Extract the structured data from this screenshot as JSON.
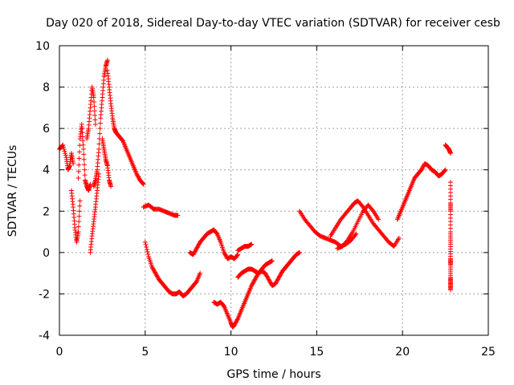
{
  "chart_data": {
    "type": "scatter",
    "title": "Day 020 of 2018, Sidereal Day-to-day VTEC variation (SDTVAR) for receiver cesb",
    "xlabel": "GPS time / hours",
    "ylabel": "SDTVAR / TECUs",
    "xlim": [
      0,
      25
    ],
    "ylim": [
      -4,
      10
    ],
    "xticks": [
      "0",
      "5",
      "10",
      "15",
      "20",
      "25"
    ],
    "yticks": [
      "-4",
      "-2",
      "0",
      "2",
      "4",
      "6",
      "8",
      "10"
    ],
    "grid": true,
    "marker": "+",
    "color": "#ff0000",
    "segments": [
      {
        "x": [
          0.0,
          0.2,
          0.4,
          0.5,
          0.6,
          0.7,
          0.8
        ],
        "y": [
          5.0,
          5.2,
          4.6,
          4.0,
          4.2,
          4.8,
          4.3
        ]
      },
      {
        "x": [
          0.7,
          0.8,
          0.9,
          1.0,
          1.1,
          1.2
        ],
        "y": [
          3.0,
          2.2,
          1.2,
          0.5,
          1.0,
          2.5
        ]
      },
      {
        "x": [
          1.1,
          1.2,
          1.3,
          1.4,
          1.5,
          1.6,
          1.7,
          1.8
        ],
        "y": [
          3.6,
          5.5,
          6.2,
          5.0,
          3.5,
          3.2,
          3.0,
          3.3
        ]
      },
      {
        "x": [
          1.6,
          1.7,
          1.8,
          1.9,
          2.0,
          2.1
        ],
        "y": [
          5.5,
          6.0,
          7.0,
          8.0,
          7.5,
          6.2
        ]
      },
      {
        "x": [
          1.8,
          1.9,
          2.0,
          2.1,
          2.2,
          2.3
        ],
        "y": [
          0.0,
          0.8,
          1.5,
          2.2,
          3.0,
          3.8
        ]
      },
      {
        "x": [
          2.0,
          2.1,
          2.2,
          2.3,
          2.4,
          2.5,
          2.6,
          2.7,
          2.8
        ],
        "y": [
          3.2,
          3.5,
          4.0,
          5.0,
          6.5,
          7.5,
          8.5,
          9.0,
          9.3
        ]
      },
      {
        "x": [
          2.8,
          2.9,
          3.0,
          3.1,
          3.2,
          3.3
        ],
        "y": [
          8.8,
          8.0,
          7.2,
          6.5,
          6.0,
          5.8
        ]
      },
      {
        "x": [
          2.5,
          2.6,
          2.7,
          2.8,
          2.9,
          3.0
        ],
        "y": [
          5.5,
          5.0,
          4.5,
          4.2,
          3.5,
          3.2
        ]
      },
      {
        "x": [
          3.3,
          3.5,
          3.7,
          3.9,
          4.1,
          4.3,
          4.5,
          4.7,
          4.9
        ],
        "y": [
          5.8,
          5.6,
          5.4,
          5.0,
          4.6,
          4.2,
          3.8,
          3.5,
          3.3
        ]
      },
      {
        "x": [
          4.9,
          5.2,
          5.5,
          5.8,
          6.1,
          6.4,
          6.7,
          6.9
        ],
        "y": [
          2.2,
          2.3,
          2.1,
          2.1,
          2.0,
          1.9,
          1.8,
          1.8
        ]
      },
      {
        "x": [
          5.0,
          5.2,
          5.4,
          5.6,
          5.8,
          6.0,
          6.2,
          6.4,
          6.6,
          6.8,
          7.0,
          7.2,
          7.4,
          7.6,
          7.8,
          8.0,
          8.2
        ],
        "y": [
          0.5,
          -0.2,
          -0.7,
          -1.0,
          -1.3,
          -1.5,
          -1.7,
          -1.9,
          -2.0,
          -2.0,
          -1.9,
          -2.1,
          -2.0,
          -1.8,
          -1.6,
          -1.4,
          -1.0
        ]
      },
      {
        "x": [
          7.6,
          7.8,
          8.0,
          8.2,
          8.4,
          8.6,
          8.8,
          9.0,
          9.2,
          9.4,
          9.6,
          9.8,
          10.0,
          10.2,
          10.4
        ],
        "y": [
          0.0,
          -0.1,
          0.2,
          0.5,
          0.7,
          0.9,
          1.0,
          1.1,
          0.9,
          0.5,
          0.0,
          -0.3,
          -0.2,
          -0.3,
          -0.1
        ]
      },
      {
        "x": [
          9.0,
          9.2,
          9.4,
          9.6,
          9.8,
          10.0,
          10.1,
          10.2,
          10.4,
          10.6,
          10.8,
          11.0,
          11.2,
          11.4,
          11.6,
          11.8,
          12.0,
          12.2,
          12.4
        ],
        "y": [
          -2.4,
          -2.5,
          -2.4,
          -2.6,
          -3.0,
          -3.4,
          -3.6,
          -3.5,
          -3.2,
          -2.8,
          -2.4,
          -2.0,
          -1.6,
          -1.3,
          -1.0,
          -0.8,
          -0.6,
          -0.5,
          -0.4
        ]
      },
      {
        "x": [
          10.4,
          10.6,
          10.8,
          11.0,
          11.2
        ],
        "y": [
          0.1,
          0.2,
          0.3,
          0.3,
          0.4
        ]
      },
      {
        "x": [
          10.4,
          10.6,
          10.8,
          11.0,
          11.2,
          11.4,
          11.6,
          11.8,
          12.0,
          12.2,
          12.4,
          12.6,
          12.8,
          13.0,
          13.2,
          13.4,
          13.6,
          13.8,
          14.0
        ],
        "y": [
          -1.2,
          -1.0,
          -0.9,
          -0.8,
          -0.8,
          -0.9,
          -1.0,
          -0.9,
          -1.0,
          -1.3,
          -1.6,
          -1.5,
          -1.2,
          -0.9,
          -0.7,
          -0.5,
          -0.3,
          -0.1,
          0.0
        ]
      },
      {
        "x": [
          14.0,
          14.3,
          14.6,
          14.9,
          15.2,
          15.5,
          15.8,
          16.1,
          16.4,
          16.7,
          17.0,
          17.3
        ],
        "y": [
          2.0,
          1.6,
          1.3,
          1.0,
          0.8,
          0.7,
          0.6,
          0.5,
          0.3,
          0.4,
          0.6,
          0.9
        ]
      },
      {
        "x": [
          15.8,
          16.1,
          16.4,
          16.7,
          17.0,
          17.2,
          17.4,
          17.7,
          18.0,
          18.3,
          18.6,
          18.9,
          19.2,
          19.5,
          19.8
        ],
        "y": [
          0.8,
          1.2,
          1.6,
          1.9,
          2.2,
          2.4,
          2.5,
          2.2,
          1.8,
          1.4,
          1.1,
          0.8,
          0.5,
          0.3,
          0.7
        ]
      },
      {
        "x": [
          16.2,
          16.5,
          16.8,
          17.1,
          17.4,
          17.7,
          18.0,
          18.3,
          18.6
        ],
        "y": [
          0.2,
          0.3,
          0.6,
          1.0,
          1.5,
          2.0,
          2.3,
          2.0,
          1.6
        ]
      },
      {
        "x": [
          19.7,
          19.9,
          20.1,
          20.3,
          20.5,
          20.7,
          20.9,
          21.1,
          21.3,
          21.5,
          21.7,
          21.9,
          22.1,
          22.3,
          22.5
        ],
        "y": [
          1.6,
          2.0,
          2.4,
          2.8,
          3.2,
          3.6,
          3.8,
          4.0,
          4.3,
          4.2,
          4.0,
          3.9,
          3.7,
          3.8,
          4.0
        ]
      },
      {
        "x": [
          22.5,
          22.6,
          22.7,
          22.8
        ],
        "y": [
          5.2,
          5.1,
          5.0,
          4.8
        ]
      },
      {
        "x": [
          22.8,
          22.8,
          22.8,
          22.8,
          22.8,
          22.8,
          22.8,
          22.8,
          22.8,
          22.8
        ],
        "y": [
          3.4,
          2.4,
          2.0,
          1.0,
          0.4,
          -0.3,
          -0.6,
          -1.2,
          -1.5,
          -1.8
        ]
      }
    ]
  }
}
